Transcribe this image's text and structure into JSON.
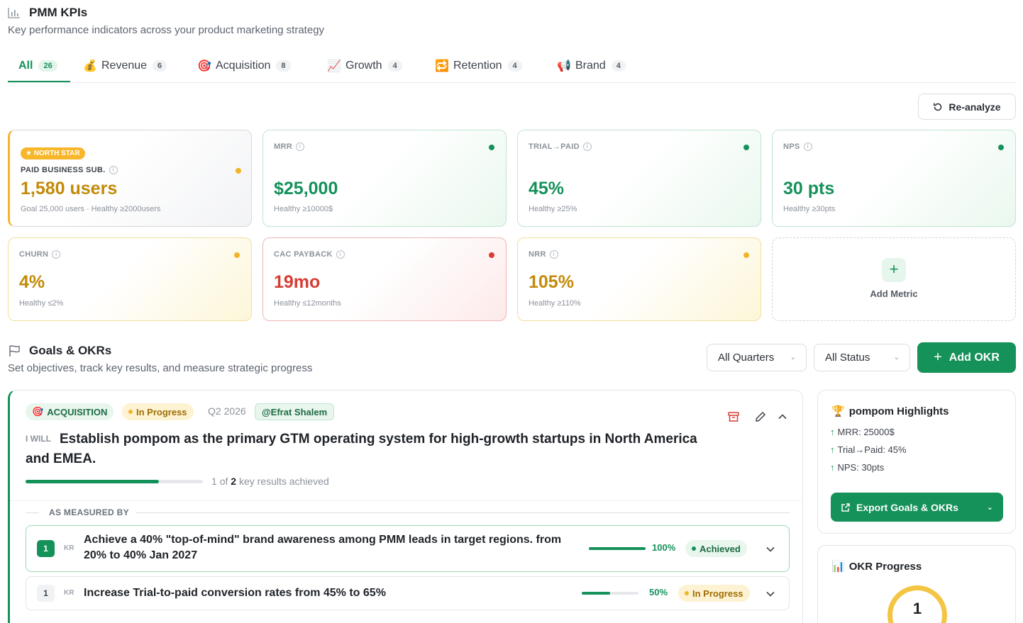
{
  "header": {
    "icon": "bar-chart-icon",
    "title": "PMM KPIs",
    "subtitle": "Key performance indicators across your product marketing strategy"
  },
  "tabs": [
    {
      "label": "All",
      "count": "26",
      "active": true,
      "icon": ""
    },
    {
      "label": "Revenue",
      "count": "6",
      "icon": "money-bag-icon"
    },
    {
      "label": "Acquisition",
      "count": "8",
      "icon": "target-icon"
    },
    {
      "label": "Growth",
      "count": "4",
      "icon": "chart-up-icon"
    },
    {
      "label": "Retention",
      "count": "4",
      "icon": "repeat-icon"
    },
    {
      "label": "Brand",
      "count": "4",
      "icon": "megaphone-icon"
    }
  ],
  "reanalyze_label": "Re-analyze",
  "kpis": {
    "north_star": {
      "badge": "★ NORTH STAR",
      "label": "PAID BUSINESS SUB.",
      "value": "1,580 users",
      "note": "Goal 25,000 users · Healthy ≥2000users",
      "status_color": "#f0b428"
    },
    "mrr": {
      "label": "MRR",
      "value": "$25,000",
      "note": "Healthy ≥10000$",
      "status_color": "#15915a"
    },
    "trial_paid": {
      "label": "TRIAL→PAID",
      "value": "45%",
      "note": "Healthy ≥25%",
      "status_color": "#15915a"
    },
    "nps": {
      "label": "NPS",
      "value": "30 pts",
      "note": "Healthy ≥30pts",
      "status_color": "#15915a"
    },
    "churn": {
      "label": "CHURN",
      "value": "4%",
      "note": "Healthy ≤2%",
      "status_color": "#f0b428"
    },
    "cac": {
      "label": "CAC PAYBACK",
      "value": "19mo",
      "note": "Healthy ≤12months",
      "status_color": "#d63c34"
    },
    "nrr": {
      "label": "NRR",
      "value": "105%",
      "note": "Healthy ≥110%",
      "status_color": "#f0b428"
    },
    "add_metric": "Add Metric"
  },
  "goals": {
    "title": "Goals & OKRs",
    "subtitle": "Set objectives, track key results, and measure strategic progress",
    "quarter_filter": "All Quarters",
    "status_filter": "All Status",
    "add_okr": "Add OKR"
  },
  "okr": {
    "category": "ACQUISITION",
    "status": "In Progress",
    "quarter": "Q2 2026",
    "owner": "@Efrat Shalem",
    "i_will": "I WILL",
    "objective": "Establish pompom as the primary GTM operating system for high-growth startups in North America and EMEA.",
    "progress_fraction": 0.75,
    "achieved_count": "1",
    "total_count": "2",
    "progress_prefix": "of",
    "progress_suffix": "key results achieved",
    "measured_by": "AS MEASURED BY",
    "key_results": [
      {
        "num": "1",
        "tag": "KR",
        "text": "Achieve a 40% \"top-of-mind\" brand awareness among PMM leads in target regions. from 20% to 40% Jan 2027",
        "percent": "100%",
        "progress": 1.0,
        "status": "Achieved"
      },
      {
        "num": "1",
        "tag": "KR",
        "text": "Increase Trial-to-paid conversion rates from 45% to 65%",
        "percent": "50%",
        "progress": 0.5,
        "status": "In Progress"
      }
    ]
  },
  "highlights": {
    "title": "pompom Highlights",
    "items": [
      "MRR: 25000$",
      "Trial→Paid: 45%",
      "NPS: 30pts"
    ],
    "export_label": "Export Goals & OKRs"
  },
  "okr_progress": {
    "title": "OKR Progress",
    "value": "1"
  }
}
